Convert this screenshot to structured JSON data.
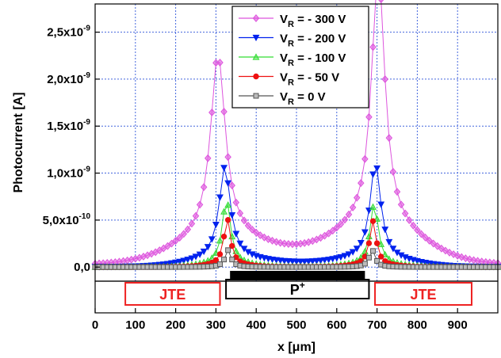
{
  "chart_data": {
    "type": "line",
    "xlabel": "x [μm]",
    "ylabel": "Photocurrent [A]",
    "xlim": [
      0,
      1000
    ],
    "ylim": [
      -1.5e-10,
      2.8e-09
    ],
    "x_ticks": [
      0,
      100,
      200,
      300,
      400,
      500,
      600,
      700,
      800,
      900
    ],
    "x_tick_labels": [
      "0",
      "100",
      "200",
      "300",
      "400",
      "500",
      "600",
      "700",
      "800",
      "900"
    ],
    "y_ticks": [
      {
        "value": 0.0,
        "mantissa": "0,0",
        "exponent": ""
      },
      {
        "value": 5e-10,
        "mantissa": "5,0x10",
        "exponent": "-10"
      },
      {
        "value": 1e-09,
        "mantissa": "1,0x10",
        "exponent": "-9"
      },
      {
        "value": 1.5e-09,
        "mantissa": "1,5x10",
        "exponent": "-9"
      },
      {
        "value": 2e-09,
        "mantissa": "2,0x10",
        "exponent": "-9"
      },
      {
        "value": 2.5e-09,
        "mantissa": "2,5x10",
        "exponent": "-9"
      }
    ],
    "grid": true,
    "legend_position": "top-center",
    "series": [
      {
        "name": "V_R = - 300 V",
        "prefix": "V",
        "sub": "R",
        "suffix": " = - 300 V",
        "color": "#dd55dd",
        "marker": "diamond",
        "peaks": [
          {
            "x": 305,
            "height": 1.95e-09,
            "w": 22
          },
          {
            "x": 703,
            "height": 2.72e-09,
            "w": 20
          }
        ],
        "baseline": 2e-11,
        "wing": 2.8e-10,
        "wing_w": 150,
        "center_bump": 6e-11
      },
      {
        "name": "V_R = - 200 V",
        "prefix": "V",
        "sub": "R",
        "suffix": " = - 200 V",
        "color": "#0022ee",
        "marker": "triangle-down",
        "peaks": [
          {
            "x": 322,
            "height": 9.8e-10,
            "w": 17
          },
          {
            "x": 696,
            "height": 1.02e-09,
            "w": 16
          }
        ],
        "baseline": 0.0,
        "wing": 8e-11,
        "wing_w": 120,
        "center_bump": 3e-11
      },
      {
        "name": "V_R = - 100 V",
        "prefix": "V",
        "sub": "R",
        "suffix": " = - 100 V",
        "color": "#33dd33",
        "marker": "triangle-up",
        "peaks": [
          {
            "x": 326,
            "height": 7e-10,
            "w": 12
          },
          {
            "x": 693,
            "height": 6.5e-10,
            "w": 12
          }
        ],
        "baseline": 0.0,
        "wing": 3e-11,
        "wing_w": 90,
        "center_bump": 0.0
      },
      {
        "name": "V_R = - 50 V",
        "prefix": "V",
        "sub": "R",
        "suffix": " = - 50 V",
        "color": "#ee1111",
        "marker": "circle",
        "peaks": [
          {
            "x": 328,
            "height": 5e-10,
            "w": 10
          },
          {
            "x": 690,
            "height": 4.7e-10,
            "w": 10
          }
        ],
        "baseline": 0.0,
        "wing": 2e-11,
        "wing_w": 70,
        "center_bump": 0.0
      },
      {
        "name": "V_R = 0 V",
        "prefix": "V",
        "sub": "R",
        "suffix": " = 0 V",
        "color": "#555555",
        "marker": "square",
        "peaks": [
          {
            "x": 330,
            "height": 1.8e-10,
            "w": 9
          },
          {
            "x": 688,
            "height": 1.8e-10,
            "w": 9
          }
        ],
        "baseline": 0.0,
        "wing": 0.0,
        "wing_w": 50,
        "center_bump": 0.0
      }
    ],
    "regions": {
      "metal": {
        "x": [
          335,
          670
        ]
      },
      "p_plus": {
        "x": [
          325,
          680
        ],
        "label": "P",
        "sup": "+"
      },
      "jte_left": {
        "x": [
          75,
          310
        ],
        "label": "JTE"
      },
      "jte_right": {
        "x": [
          695,
          935
        ],
        "label": "JTE"
      }
    }
  }
}
